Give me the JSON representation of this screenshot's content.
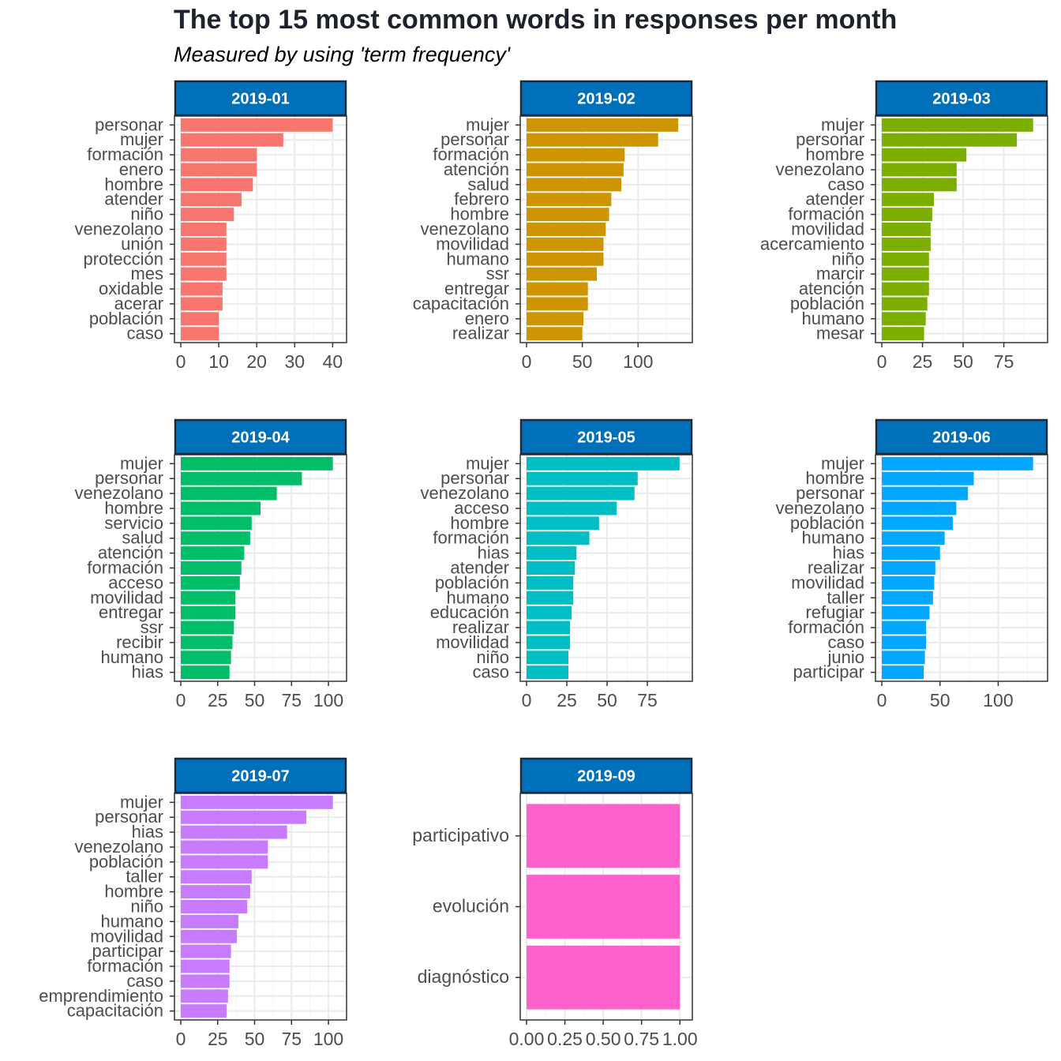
{
  "title": "The top 15 most common words in responses per month",
  "subtitle": "Measured by using 'term frequency'",
  "chart_data": [
    {
      "type": "bar",
      "orientation": "horizontal",
      "panel": "2019-01",
      "color": "#F8766D",
      "xlim": [
        0,
        42
      ],
      "x_ticks": [
        "0",
        "10",
        "20",
        "30",
        "40"
      ],
      "x_tick_values": [
        0,
        10,
        20,
        30,
        40
      ],
      "categories": [
        "personar",
        "mujer",
        "formación",
        "enero",
        "hombre",
        "atender",
        "niño",
        "venezolano",
        "unión",
        "protección",
        "mes",
        "oxidable",
        "acerar",
        "población",
        "caso"
      ],
      "values": [
        40,
        27,
        20,
        20,
        19,
        16,
        14,
        12,
        12,
        12,
        12,
        11,
        11,
        10,
        10
      ]
    },
    {
      "type": "bar",
      "orientation": "horizontal",
      "panel": "2019-02",
      "color": "#CD9600",
      "xlim": [
        0,
        143
      ],
      "x_ticks": [
        "0",
        "50",
        "100"
      ],
      "x_tick_values": [
        0,
        50,
        100
      ],
      "categories": [
        "mujer",
        "personar",
        "formación",
        "atención",
        "salud",
        "febrero",
        "hombre",
        "venezolano",
        "movilidad",
        "humano",
        "ssr",
        "entregar",
        "capacitación",
        "enero",
        "realizar"
      ],
      "values": [
        136,
        118,
        88,
        87,
        85,
        76,
        74,
        71,
        69,
        69,
        63,
        55,
        55,
        51,
        50
      ]
    },
    {
      "type": "bar",
      "orientation": "horizontal",
      "panel": "2019-03",
      "color": "#7CAE00",
      "xlim": [
        0,
        98
      ],
      "x_ticks": [
        "0",
        "25",
        "50",
        "75"
      ],
      "x_tick_values": [
        0,
        25,
        50,
        75
      ],
      "categories": [
        "mujer",
        "personar",
        "hombre",
        "venezolano",
        "caso",
        "atender",
        "formación",
        "movilidad",
        "acercamiento",
        "niño",
        "marcir",
        "atención",
        "población",
        "humano",
        "mesar"
      ],
      "values": [
        93,
        83,
        52,
        46,
        46,
        32,
        31,
        30,
        30,
        29,
        29,
        29,
        28,
        27,
        26
      ]
    },
    {
      "type": "bar",
      "orientation": "horizontal",
      "panel": "2019-04",
      "color": "#00BE67",
      "xlim": [
        0,
        108
      ],
      "x_ticks": [
        "0",
        "25",
        "50",
        "75",
        "100"
      ],
      "x_tick_values": [
        0,
        25,
        50,
        75,
        100
      ],
      "categories": [
        "mujer",
        "personar",
        "venezolano",
        "hombre",
        "servicio",
        "salud",
        "atención",
        "formación",
        "acceso",
        "movilidad",
        "entregar",
        "ssr",
        "recibir",
        "humano",
        "hias"
      ],
      "values": [
        103,
        82,
        65,
        54,
        48,
        47,
        43,
        41,
        40,
        37,
        37,
        36,
        35,
        34,
        33
      ]
    },
    {
      "type": "bar",
      "orientation": "horizontal",
      "panel": "2019-05",
      "color": "#00BFC4",
      "xlim": [
        0,
        99
      ],
      "x_ticks": [
        "0",
        "25",
        "50",
        "75"
      ],
      "x_tick_values": [
        0,
        25,
        50,
        75
      ],
      "categories": [
        "mujer",
        "personar",
        "venezolano",
        "acceso",
        "hombre",
        "formación",
        "hias",
        "atender",
        "población",
        "humano",
        "educación",
        "realizar",
        "movilidad",
        "niño",
        "caso"
      ],
      "values": [
        95,
        69,
        67,
        56,
        45,
        39,
        31,
        30,
        29,
        29,
        28,
        27,
        27,
        26,
        26
      ]
    },
    {
      "type": "bar",
      "orientation": "horizontal",
      "panel": "2019-06",
      "color": "#00A9FF",
      "xlim": [
        0,
        137
      ],
      "x_ticks": [
        "0",
        "50",
        "100"
      ],
      "x_tick_values": [
        0,
        50,
        100
      ],
      "categories": [
        "mujer",
        "hombre",
        "personar",
        "venezolano",
        "población",
        "humano",
        "hias",
        "realizar",
        "movilidad",
        "taller",
        "refugiar",
        "formación",
        "caso",
        "junio",
        "participar"
      ],
      "values": [
        130,
        79,
        74,
        64,
        61,
        54,
        50,
        46,
        45,
        44,
        41,
        38,
        38,
        37,
        36
      ]
    },
    {
      "type": "bar",
      "orientation": "horizontal",
      "panel": "2019-07",
      "color": "#C77CFF",
      "xlim": [
        0,
        108
      ],
      "x_ticks": [
        "0",
        "25",
        "50",
        "75",
        "100"
      ],
      "x_tick_values": [
        0,
        25,
        50,
        75,
        100
      ],
      "categories": [
        "mujer",
        "personar",
        "hias",
        "venezolano",
        "población",
        "taller",
        "hombre",
        "niño",
        "humano",
        "movilidad",
        "participar",
        "formación",
        "caso",
        "emprendimiento",
        "capacitación"
      ],
      "values": [
        103,
        85,
        72,
        59,
        59,
        48,
        47,
        45,
        39,
        38,
        34,
        33,
        33,
        32,
        31
      ]
    },
    {
      "type": "bar",
      "orientation": "horizontal",
      "panel": "2019-09",
      "color": "#FF61CC",
      "xlim": [
        0,
        1.04
      ],
      "x_ticks": [
        "0.00",
        "0.25",
        "0.50",
        "0.75",
        "1.00"
      ],
      "x_tick_values": [
        0,
        0.25,
        0.5,
        0.75,
        1.0
      ],
      "categories": [
        "participativo",
        "evolución",
        "diagnóstico"
      ],
      "values": [
        1,
        1,
        1
      ]
    }
  ]
}
